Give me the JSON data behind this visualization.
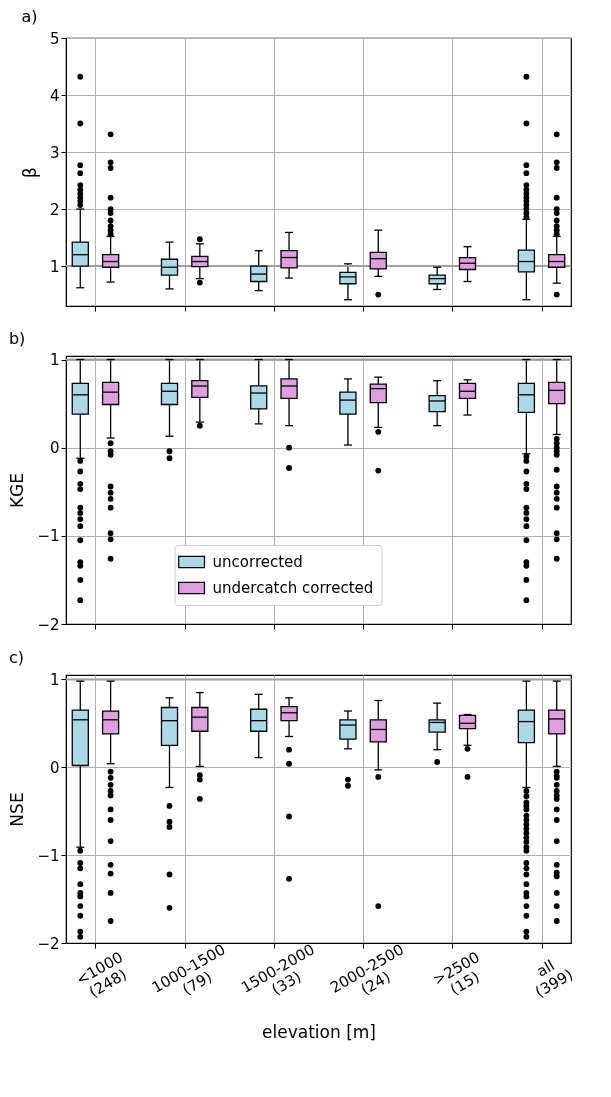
{
  "chart_data": [
    {
      "type": "box",
      "title": "a)",
      "ylabel": "β",
      "categories": [
        null,
        null,
        null,
        null,
        null,
        null
      ],
      "ylim": [
        0.3,
        5
      ],
      "yticks": [
        1,
        2,
        3,
        4,
        5
      ],
      "grid": true,
      "tick_labels": "y",
      "ref_lines": [
        {
          "axis": "y",
          "value": 1,
          "color": "#a0a0a0"
        }
      ],
      "series": [
        {
          "color": "#add8e6",
          "boxes": [
            {
              "low": 0.62,
              "q1": 1.0,
              "median": 1.2,
              "q3": 1.42,
              "high": 2.0,
              "outliers": [
                4.32,
                3.5,
                2.77,
                2.63,
                2.42,
                2.34,
                2.27,
                2.2,
                2.14,
                2.07
              ]
            },
            {
              "low": 0.6,
              "q1": 0.84,
              "median": 0.98,
              "q3": 1.12,
              "high": 1.42
            },
            {
              "low": 0.57,
              "q1": 0.73,
              "median": 0.86,
              "q3": 1.0,
              "high": 1.27
            },
            {
              "low": 0.41,
              "q1": 0.69,
              "median": 0.81,
              "q3": 0.89,
              "high": 1.04
            },
            {
              "low": 0.59,
              "q1": 0.69,
              "median": 0.78,
              "q3": 0.84,
              "high": 0.98
            },
            {
              "low": 0.41,
              "q1": 0.9,
              "median": 1.08,
              "q3": 1.28,
              "high": 1.82,
              "outliers": [
                4.32,
                3.5,
                2.77,
                2.63,
                2.42,
                2.34,
                2.27,
                2.2,
                2.14,
                2.07,
                2.0,
                1.93,
                1.86
              ]
            }
          ]
        },
        {
          "color": "#dda0dd",
          "boxes": [
            {
              "low": 0.72,
              "q1": 0.98,
              "median": 1.08,
              "q3": 1.2,
              "high": 1.52,
              "outliers": [
                3.31,
                2.82,
                2.72,
                2.2,
                2.0,
                1.93,
                1.8,
                1.7,
                1.63,
                1.56
              ]
            },
            {
              "low": 0.78,
              "q1": 0.99,
              "median": 1.08,
              "q3": 1.17,
              "high": 1.39,
              "outliers": [
                1.47,
                0.71
              ]
            },
            {
              "low": 0.79,
              "q1": 0.97,
              "median": 1.15,
              "q3": 1.27,
              "high": 1.59
            },
            {
              "low": 0.82,
              "q1": 0.95,
              "median": 1.13,
              "q3": 1.24,
              "high": 1.63,
              "outliers": [
                0.5
              ]
            },
            {
              "low": 0.73,
              "q1": 0.94,
              "median": 1.05,
              "q3": 1.15,
              "high": 1.34
            },
            {
              "low": 0.7,
              "q1": 0.98,
              "median": 1.08,
              "q3": 1.2,
              "high": 1.52,
              "outliers": [
                3.31,
                2.82,
                2.72,
                2.2,
                2.0,
                1.93,
                1.8,
                1.7,
                1.63,
                1.56,
                0.5
              ]
            }
          ]
        }
      ]
    },
    {
      "type": "box",
      "title": "b)",
      "ylabel": "KGE",
      "categories": [
        null,
        null,
        null,
        null,
        null,
        null
      ],
      "ylim": [
        -2,
        1.04
      ],
      "yticks": [
        -2,
        -1,
        0,
        1
      ],
      "grid": true,
      "tick_labels": "y",
      "legend": "bottom",
      "ref_lines": [
        {
          "axis": "y",
          "value": 1,
          "color": "#a0a0a0"
        }
      ],
      "series": [
        {
          "name": "uncorrected",
          "color": "#add8e6",
          "boxes": [
            {
              "low": -0.12,
              "q1": 0.38,
              "median": 0.6,
              "q3": 0.73,
              "high": 1.0,
              "outliers": [
                -0.15,
                -0.27,
                -0.41,
                -0.47,
                -0.68,
                -0.74,
                -0.81,
                -0.89,
                -1.05,
                -1.3,
                -1.34,
                -1.5,
                -1.73
              ]
            },
            {
              "low": 0.13,
              "q1": 0.49,
              "median": 0.64,
              "q3": 0.73,
              "high": 1.0,
              "outliers": [
                -0.04,
                -0.12
              ]
            },
            {
              "low": 0.27,
              "q1": 0.44,
              "median": 0.62,
              "q3": 0.7,
              "high": 1.0
            },
            {
              "low": 0.03,
              "q1": 0.38,
              "median": 0.54,
              "q3": 0.63,
              "high": 0.78
            },
            {
              "low": 0.25,
              "q1": 0.41,
              "median": 0.53,
              "q3": 0.59,
              "high": 0.76
            },
            {
              "low": -0.07,
              "q1": 0.4,
              "median": 0.6,
              "q3": 0.73,
              "high": 1.0,
              "outliers": [
                -0.1,
                -0.15,
                -0.27,
                -0.41,
                -0.47,
                -0.68,
                -0.74,
                -0.81,
                -0.89,
                -1.05,
                -1.3,
                -1.34,
                -1.5,
                -1.73
              ]
            }
          ]
        },
        {
          "name": "undercatch corrected",
          "color": "#dda0dd",
          "boxes": [
            {
              "low": 0.11,
              "q1": 0.49,
              "median": 0.63,
              "q3": 0.74,
              "high": 1.0,
              "outliers": [
                0.05,
                -0.04,
                -0.08,
                -0.44,
                -0.51,
                -0.58,
                -0.68,
                -0.97,
                -1.04,
                -1.26
              ]
            },
            {
              "low": 0.29,
              "q1": 0.57,
              "median": 0.7,
              "q3": 0.76,
              "high": 1.0,
              "outliers": [
                0.25
              ]
            },
            {
              "low": 0.25,
              "q1": 0.56,
              "median": 0.7,
              "q3": 0.78,
              "high": 1.0,
              "outliers": [
                0.0,
                -0.23
              ]
            },
            {
              "low": 0.23,
              "q1": 0.51,
              "median": 0.67,
              "q3": 0.72,
              "high": 0.8,
              "outliers": [
                0.18,
                -0.26
              ]
            },
            {
              "low": 0.37,
              "q1": 0.56,
              "median": 0.64,
              "q3": 0.73,
              "high": 0.77
            },
            {
              "low": 0.15,
              "q1": 0.5,
              "median": 0.65,
              "q3": 0.74,
              "high": 1.0,
              "outliers": [
                0.1,
                0.05,
                0.0,
                -0.04,
                -0.08,
                -0.25,
                -0.44,
                -0.51,
                -0.58,
                -0.68,
                -0.97,
                -1.04,
                -1.26
              ]
            }
          ]
        }
      ]
    },
    {
      "type": "box",
      "title": "c)",
      "ylabel": "NSE",
      "xlabel": "elevation [m]",
      "categories": [
        "<1000\n(248)",
        "1000-1500\n(79)",
        "1500-2000\n(33)",
        "2000-2500\n(24)",
        ">2500\n(15)",
        "all\n(399)"
      ],
      "ylim": [
        -2,
        1.05
      ],
      "yticks": [
        -2,
        -1,
        0,
        1
      ],
      "grid": true,
      "ref_lines": [
        {
          "axis": "y",
          "value": 1,
          "color": "#a0a0a0"
        }
      ],
      "series": [
        {
          "color": "#add8e6",
          "boxes": [
            {
              "low": -0.91,
              "q1": 0.02,
              "median": 0.54,
              "q3": 0.65,
              "high": 0.98,
              "outliers": [
                -0.95,
                -1.09,
                -1.15,
                -1.33,
                -1.43,
                -1.47,
                -1.58,
                -1.69,
                -1.87,
                -1.93
              ]
            },
            {
              "low": -0.23,
              "q1": 0.25,
              "median": 0.53,
              "q3": 0.68,
              "high": 0.79,
              "outliers": [
                -0.44,
                -0.62,
                -0.68,
                -1.22,
                -1.6
              ]
            },
            {
              "low": 0.11,
              "q1": 0.41,
              "median": 0.53,
              "q3": 0.66,
              "high": 0.83
            },
            {
              "low": 0.21,
              "q1": 0.32,
              "median": 0.48,
              "q3": 0.54,
              "high": 0.64,
              "outliers": [
                -0.14,
                -0.21
              ]
            },
            {
              "low": 0.2,
              "q1": 0.4,
              "median": 0.51,
              "q3": 0.54,
              "high": 0.73,
              "outliers": [
                0.06
              ]
            },
            {
              "low": -0.23,
              "q1": 0.28,
              "median": 0.52,
              "q3": 0.65,
              "high": 0.98,
              "outliers": [
                -0.27,
                -0.33,
                -0.4,
                -0.44,
                -0.48,
                -0.55,
                -0.6,
                -0.65,
                -0.7,
                -0.75,
                -0.8,
                -0.85,
                -0.91,
                -0.95,
                -1.09,
                -1.15,
                -1.22,
                -1.33,
                -1.43,
                -1.47,
                -1.58,
                -1.69,
                -1.87,
                -1.93
              ]
            }
          ]
        },
        {
          "color": "#dda0dd",
          "boxes": [
            {
              "low": 0.04,
              "q1": 0.38,
              "median": 0.54,
              "q3": 0.64,
              "high": 0.98,
              "outliers": [
                -0.05,
                -0.12,
                -0.2,
                -0.27,
                -0.32,
                -0.48,
                -0.6,
                -0.84,
                -1.11,
                -1.21,
                -1.43,
                -1.75
              ]
            },
            {
              "low": 0.01,
              "q1": 0.41,
              "median": 0.57,
              "q3": 0.68,
              "high": 0.85,
              "outliers": [
                -0.09,
                -0.14,
                -0.36
              ]
            },
            {
              "low": 0.35,
              "q1": 0.53,
              "median": 0.62,
              "q3": 0.69,
              "high": 0.79,
              "outliers": [
                0.2,
                0.04,
                -0.56,
                -1.27
              ]
            },
            {
              "low": -0.03,
              "q1": 0.29,
              "median": 0.43,
              "q3": 0.54,
              "high": 0.76,
              "outliers": [
                -0.11,
                -1.58
              ]
            },
            {
              "low": 0.25,
              "q1": 0.44,
              "median": 0.5,
              "q3": 0.59,
              "high": 0.6,
              "outliers": [
                0.21,
                -0.11
              ]
            },
            {
              "low": 0.01,
              "q1": 0.38,
              "median": 0.55,
              "q3": 0.65,
              "high": 0.98,
              "outliers": [
                -0.05,
                -0.1,
                -0.12,
                -0.2,
                -0.27,
                -0.32,
                -0.36,
                -0.48,
                -0.6,
                -0.84,
                -1.11,
                -1.2,
                -1.24,
                -1.43,
                -1.58,
                -1.75
              ]
            }
          ]
        }
      ]
    }
  ]
}
